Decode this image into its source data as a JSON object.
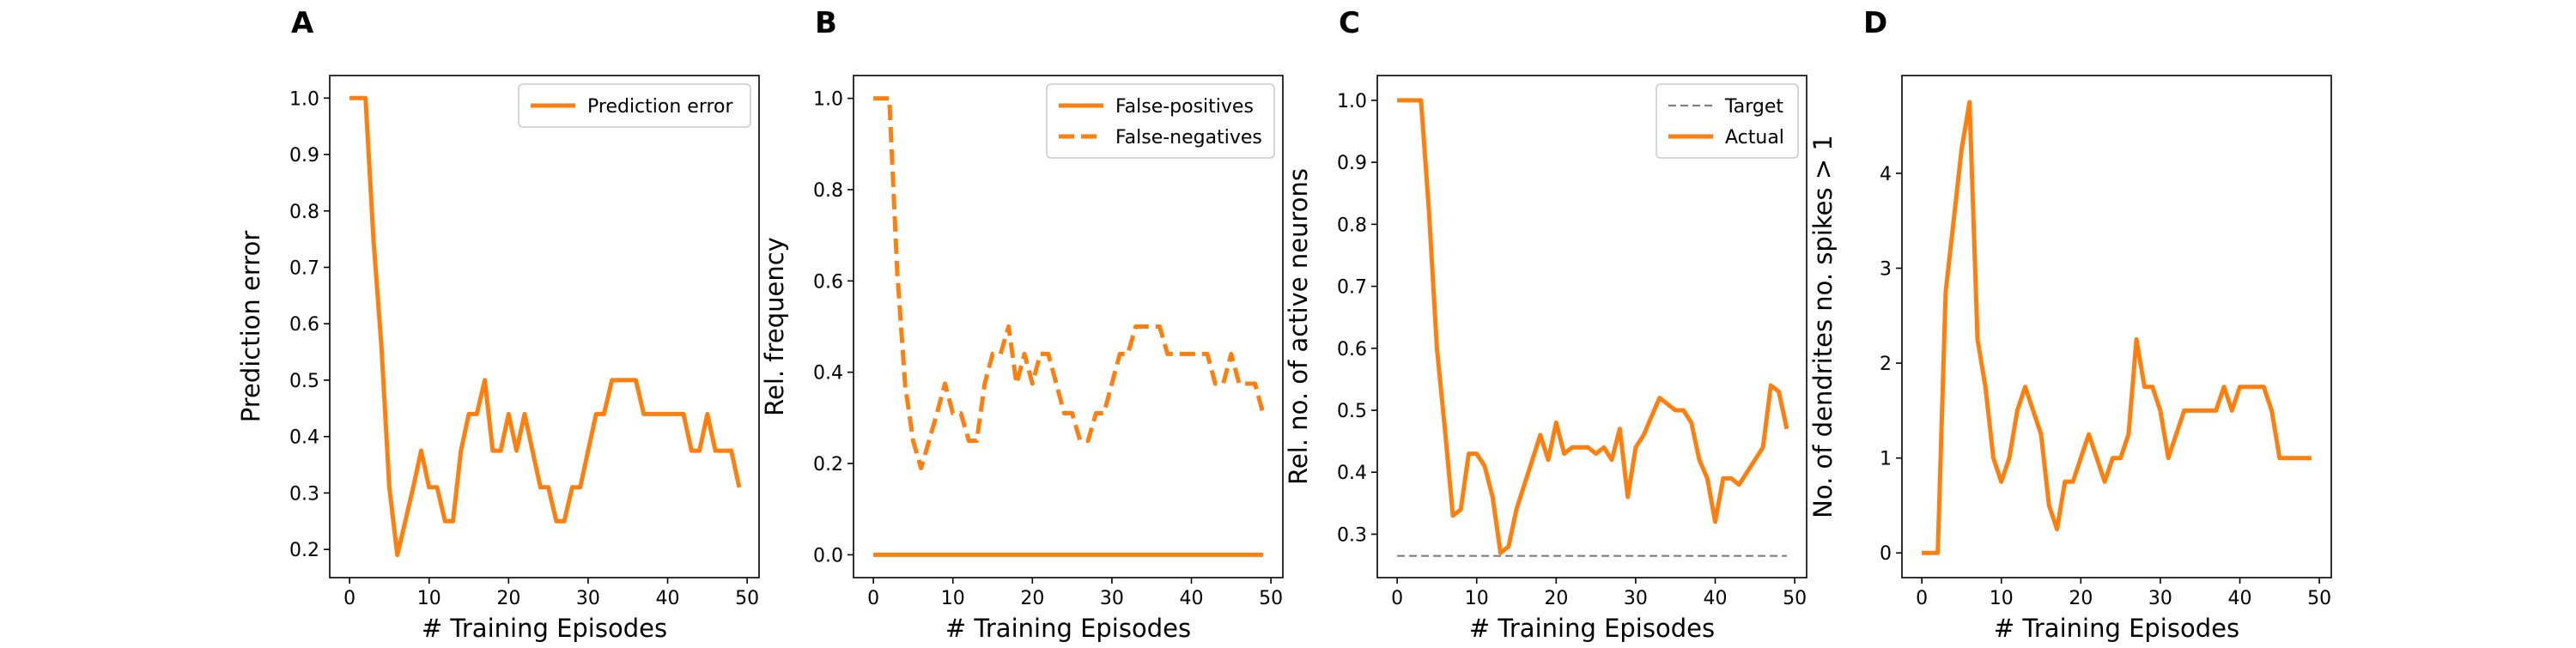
{
  "colors": {
    "series": "#ff7f0e",
    "target": "#7f7f7f"
  },
  "chart_data": [
    {
      "panel": "A",
      "type": "line",
      "xlabel": "# Training Episodes",
      "ylabel": "Prediction error",
      "xlim": [
        -2.5,
        51.5
      ],
      "ylim": [
        0.15,
        1.04
      ],
      "xticks": [
        0,
        10,
        20,
        30,
        40,
        50
      ],
      "yticks": [
        0.2,
        0.3,
        0.4,
        0.5,
        0.6,
        0.7,
        0.8,
        0.9,
        1.0
      ],
      "ytick_decimals": 1,
      "legend_position": "upper-right",
      "series": [
        {
          "name": "Prediction error",
          "style": "solid",
          "x": [
            0,
            1,
            2,
            3,
            4,
            5,
            6,
            7,
            8,
            9,
            10,
            11,
            12,
            13,
            14,
            15,
            16,
            17,
            18,
            19,
            20,
            21,
            22,
            23,
            24,
            25,
            26,
            27,
            28,
            29,
            30,
            31,
            32,
            33,
            34,
            35,
            36,
            37,
            38,
            39,
            40,
            41,
            42,
            43,
            44,
            45,
            46,
            47,
            48,
            49
          ],
          "y": [
            1.0,
            1.0,
            1.0,
            0.75,
            0.56,
            0.31,
            0.19,
            0.25,
            0.31,
            0.375,
            0.31,
            0.31,
            0.25,
            0.25,
            0.375,
            0.44,
            0.44,
            0.5,
            0.375,
            0.375,
            0.44,
            0.375,
            0.44,
            0.375,
            0.31,
            0.31,
            0.25,
            0.25,
            0.31,
            0.31,
            0.375,
            0.44,
            0.44,
            0.5,
            0.5,
            0.5,
            0.5,
            0.44,
            0.44,
            0.44,
            0.44,
            0.44,
            0.44,
            0.375,
            0.375,
            0.44,
            0.375,
            0.375,
            0.375,
            0.31
          ]
        }
      ]
    },
    {
      "panel": "B",
      "type": "line",
      "xlabel": "# Training Episodes",
      "ylabel": "Rel. frequency",
      "xlim": [
        -2.5,
        51.5
      ],
      "ylim": [
        -0.05,
        1.05
      ],
      "xticks": [
        0,
        10,
        20,
        30,
        40,
        50
      ],
      "yticks": [
        0.0,
        0.2,
        0.4,
        0.6,
        0.8,
        1.0
      ],
      "ytick_decimals": 1,
      "legend_position": "upper-right",
      "series": [
        {
          "name": "False-positives",
          "style": "solid",
          "x": [
            0,
            49
          ],
          "y": [
            0.0,
            0.0
          ]
        },
        {
          "name": "False-negatives",
          "style": "dashed",
          "x": [
            0,
            1,
            2,
            3,
            4,
            5,
            6,
            7,
            8,
            9,
            10,
            11,
            12,
            13,
            14,
            15,
            16,
            17,
            18,
            19,
            20,
            21,
            22,
            23,
            24,
            25,
            26,
            27,
            28,
            29,
            30,
            31,
            32,
            33,
            34,
            35,
            36,
            37,
            38,
            39,
            40,
            41,
            42,
            43,
            44,
            45,
            46,
            47,
            48,
            49
          ],
          "y": [
            1.0,
            1.0,
            1.0,
            0.62,
            0.37,
            0.25,
            0.19,
            0.25,
            0.31,
            0.375,
            0.31,
            0.31,
            0.25,
            0.25,
            0.375,
            0.44,
            0.44,
            0.5,
            0.375,
            0.44,
            0.375,
            0.44,
            0.44,
            0.375,
            0.31,
            0.31,
            0.25,
            0.25,
            0.31,
            0.31,
            0.375,
            0.44,
            0.44,
            0.5,
            0.5,
            0.5,
            0.5,
            0.44,
            0.44,
            0.44,
            0.44,
            0.44,
            0.44,
            0.375,
            0.375,
            0.44,
            0.375,
            0.375,
            0.375,
            0.31
          ]
        }
      ]
    },
    {
      "panel": "C",
      "type": "line",
      "xlabel": "# Training Episodes",
      "ylabel": "Rel. no. of active neurons",
      "xlim": [
        -2.5,
        51.5
      ],
      "ylim": [
        0.23,
        1.04
      ],
      "xticks": [
        0,
        10,
        20,
        30,
        40,
        50
      ],
      "yticks": [
        0.3,
        0.4,
        0.5,
        0.6,
        0.7,
        0.8,
        0.9,
        1.0
      ],
      "ytick_decimals": 1,
      "legend_position": "upper-right",
      "series": [
        {
          "name": "Target",
          "style": "dashed-thin",
          "x": [
            0,
            49
          ],
          "y": [
            0.265,
            0.265
          ]
        },
        {
          "name": "Actual",
          "style": "solid",
          "x": [
            0,
            1,
            2,
            3,
            4,
            5,
            6,
            7,
            8,
            9,
            10,
            11,
            12,
            13,
            14,
            15,
            16,
            17,
            18,
            19,
            20,
            21,
            22,
            23,
            24,
            25,
            26,
            27,
            28,
            29,
            30,
            31,
            32,
            33,
            34,
            35,
            36,
            37,
            38,
            39,
            40,
            41,
            42,
            43,
            44,
            45,
            46,
            47,
            48,
            49
          ],
          "y": [
            1.0,
            1.0,
            1.0,
            1.0,
            0.82,
            0.6,
            0.47,
            0.33,
            0.34,
            0.43,
            0.43,
            0.41,
            0.36,
            0.27,
            0.28,
            0.34,
            0.38,
            0.42,
            0.46,
            0.42,
            0.48,
            0.43,
            0.44,
            0.44,
            0.44,
            0.43,
            0.44,
            0.42,
            0.47,
            0.36,
            0.44,
            0.46,
            0.49,
            0.52,
            0.51,
            0.5,
            0.5,
            0.48,
            0.42,
            0.39,
            0.32,
            0.39,
            0.39,
            0.38,
            0.4,
            0.42,
            0.44,
            0.54,
            0.53,
            0.47
          ]
        }
      ]
    },
    {
      "panel": "D",
      "type": "line",
      "xlabel": "# Training Episodes",
      "ylabel": "No. of dendrites no. spikes > 1",
      "xlim": [
        -2.5,
        51.5
      ],
      "ylim": [
        -0.26,
        5.03
      ],
      "xticks": [
        0,
        10,
        20,
        30,
        40,
        50
      ],
      "yticks": [
        0,
        1,
        2,
        3,
        4
      ],
      "ytick_decimals": 0,
      "legend_position": "none",
      "series": [
        {
          "name": "",
          "style": "solid",
          "x": [
            0,
            1,
            2,
            3,
            4,
            5,
            6,
            7,
            8,
            9,
            10,
            11,
            12,
            13,
            14,
            15,
            16,
            17,
            18,
            19,
            20,
            21,
            22,
            23,
            24,
            25,
            26,
            27,
            28,
            29,
            30,
            31,
            32,
            33,
            34,
            35,
            36,
            37,
            38,
            39,
            40,
            41,
            42,
            43,
            44,
            45,
            46,
            47,
            48,
            49
          ],
          "y": [
            0,
            0,
            0,
            2.75,
            3.5,
            4.25,
            4.75,
            2.25,
            1.75,
            1.0,
            0.75,
            1.0,
            1.5,
            1.75,
            1.5,
            1.25,
            0.5,
            0.25,
            0.75,
            0.75,
            1.0,
            1.25,
            1.0,
            0.75,
            1.0,
            1.0,
            1.25,
            2.25,
            1.75,
            1.75,
            1.5,
            1.0,
            1.25,
            1.5,
            1.5,
            1.5,
            1.5,
            1.5,
            1.75,
            1.5,
            1.75,
            1.75,
            1.75,
            1.75,
            1.5,
            1.0,
            1.0,
            1.0,
            1.0,
            1.0
          ]
        }
      ]
    }
  ]
}
